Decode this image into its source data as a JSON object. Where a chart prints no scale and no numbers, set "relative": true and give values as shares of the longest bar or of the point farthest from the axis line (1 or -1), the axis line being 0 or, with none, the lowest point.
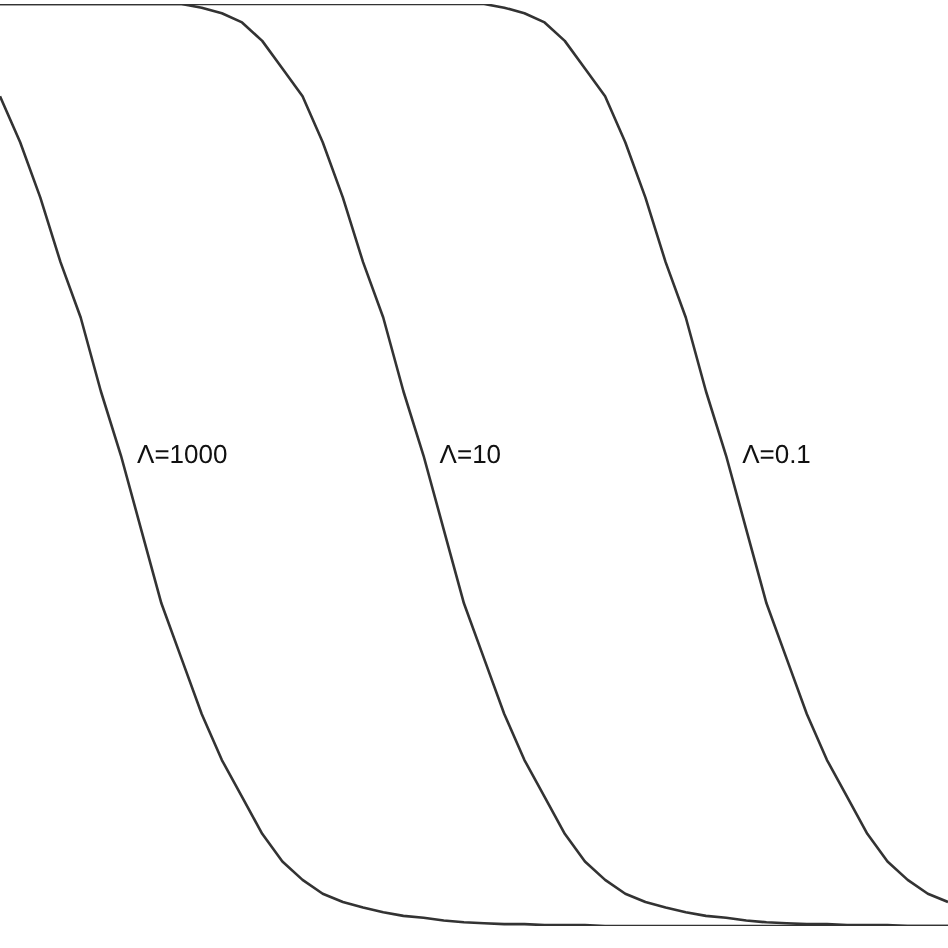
{
  "chart_data": {
    "type": "line",
    "relative": true,
    "legend": false,
    "grid": false,
    "tick_labels": false,
    "marker": "none",
    "line_style": "solid",
    "categories": [
      null,
      null,
      null,
      null,
      null,
      null,
      null,
      null,
      null,
      null,
      null,
      null,
      null,
      null,
      null,
      null,
      null,
      null,
      null,
      null,
      null,
      null,
      null,
      null,
      null,
      null,
      null,
      null,
      null,
      null,
      null,
      null,
      null,
      null,
      null,
      null,
      null,
      null,
      null,
      null,
      null,
      null,
      null,
      null,
      null,
      null,
      null,
      null
    ],
    "series": [
      {
        "name": "Λ=1000",
        "color": "#333333",
        "values": [
          0.9,
          0.85,
          0.79,
          0.72,
          0.66,
          0.58,
          0.51,
          0.43,
          0.35,
          0.29,
          0.23,
          0.18,
          0.14,
          0.1,
          0.07,
          0.05,
          0.035,
          0.026,
          0.02,
          0.015,
          0.011,
          0.009,
          0.006,
          0.004,
          0.003,
          0.002,
          0.002,
          0.001,
          0.001,
          0.001,
          0,
          0,
          0,
          0,
          0,
          0,
          0,
          0,
          0,
          0,
          0,
          0,
          0,
          0,
          0,
          0,
          0,
          0
        ]
      },
      {
        "name": "Λ=10",
        "color": "#333333",
        "values": [
          1,
          1,
          1,
          1,
          1,
          1,
          1,
          1,
          1,
          1,
          0.996,
          0.99,
          0.98,
          0.96,
          0.93,
          0.9,
          0.85,
          0.79,
          0.72,
          0.66,
          0.58,
          0.51,
          0.43,
          0.35,
          0.29,
          0.23,
          0.18,
          0.14,
          0.1,
          0.07,
          0.05,
          0.035,
          0.026,
          0.02,
          0.015,
          0.011,
          0.009,
          0.006,
          0.004,
          0.003,
          0.002,
          0.002,
          0.001,
          0.001,
          0.001,
          0,
          0,
          0
        ]
      },
      {
        "name": "Λ=0.1",
        "color": "#333333",
        "values": [
          1,
          1,
          1,
          1,
          1,
          1,
          1,
          1,
          1,
          1,
          1,
          1,
          1,
          1,
          1,
          1,
          1,
          1,
          1,
          1,
          1,
          1,
          1,
          1,
          1,
          0.996,
          0.99,
          0.98,
          0.96,
          0.93,
          0.9,
          0.85,
          0.79,
          0.72,
          0.66,
          0.58,
          0.51,
          0.43,
          0.35,
          0.29,
          0.23,
          0.18,
          0.14,
          0.1,
          0.07,
          0.05,
          0.035,
          0.026
        ]
      }
    ]
  }
}
